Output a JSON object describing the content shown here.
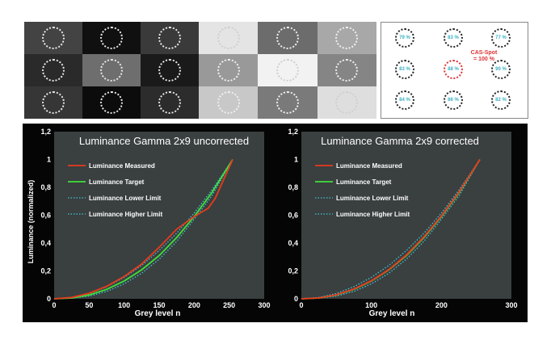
{
  "test_patterns": {
    "left_grid_grays": [
      [
        "#434343",
        "#101010",
        "#3a3a3a"
      ],
      [
        "#2a2a2a",
        "#6e6e6e",
        "#1a1a1a"
      ],
      [
        "#363636",
        "#0c0c0c",
        "#2c2c2c"
      ]
    ],
    "mid_grid_grays": [
      [
        "#e4e4e4",
        "#6c6c6c",
        "#a8a8a8"
      ],
      [
        "#999999",
        "#f2f2f2",
        "#858585"
      ],
      [
        "#c8c8c8",
        "#7a7a7a",
        "#dedede"
      ]
    ]
  },
  "uniformity": {
    "cells": [
      "79 %",
      "83 %",
      "77 %",
      "83 %",
      "88 %",
      "90 %",
      "84 %",
      "86 %",
      "82 %"
    ],
    "spot_label_line1": "CAS-Spot",
    "spot_label_line2": "= 100 %"
  },
  "colors": {
    "measured": "#e83a1e",
    "target": "#3fe03a",
    "limits": "#3ec8d8",
    "plot_bg": "#3a3f3f",
    "frame": "#050505",
    "axis_text": "#ffffff"
  },
  "chart_data": [
    {
      "type": "line",
      "title": "Luminance Gamma 2x9 uncorrected",
      "xlabel": "Grey level n",
      "ylabel": "Luminance (normalized)",
      "xlim": [
        0,
        300
      ],
      "ylim": [
        0,
        1.2
      ],
      "xticks": [
        "0",
        "50",
        "100",
        "150",
        "200",
        "250",
        "300"
      ],
      "yticks": [
        "0",
        "0,2",
        "0,4",
        "0,6",
        "0,8",
        "1",
        "1,2"
      ],
      "legend_position": "top-left",
      "series": [
        {
          "name": "Luminance Measured",
          "style": "solid",
          "color": "#e83a1e",
          "x": [
            0,
            25,
            50,
            75,
            100,
            125,
            150,
            175,
            200,
            210,
            220,
            230,
            255
          ],
          "y": [
            0,
            0.01,
            0.04,
            0.09,
            0.16,
            0.25,
            0.37,
            0.5,
            0.59,
            0.62,
            0.65,
            0.72,
            1.0
          ]
        },
        {
          "name": "Luminance Target",
          "style": "solid",
          "color": "#3fe03a",
          "gamma": 2.2,
          "x": [
            0,
            25,
            50,
            75,
            100,
            125,
            150,
            175,
            200,
            225,
            255
          ],
          "y": [
            0,
            0.006,
            0.028,
            0.068,
            0.128,
            0.208,
            0.31,
            0.44,
            0.59,
            0.76,
            1.0
          ]
        },
        {
          "name": "Luminance Lower Limit",
          "style": "dotted",
          "color": "#3ec8d8",
          "gamma": 2.4,
          "x": [
            0,
            25,
            50,
            75,
            100,
            125,
            150,
            175,
            200,
            225,
            255
          ],
          "y": [
            0,
            0.004,
            0.02,
            0.053,
            0.107,
            0.183,
            0.284,
            0.413,
            0.571,
            0.738,
            1.0
          ]
        },
        {
          "name": "Luminance Higher Limit",
          "style": "dotted",
          "color": "#3ec8d8",
          "gamma": 2.0,
          "x": [
            0,
            25,
            50,
            75,
            100,
            125,
            150,
            175,
            200,
            225,
            255
          ],
          "y": [
            0,
            0.01,
            0.038,
            0.087,
            0.154,
            0.24,
            0.346,
            0.471,
            0.615,
            0.779,
            1.0
          ]
        }
      ]
    },
    {
      "type": "line",
      "title": "Luminance Gamma 2x9 corrected",
      "xlabel": "Grey level n",
      "ylabel": "",
      "xlim": [
        0,
        300
      ],
      "ylim": [
        0,
        1.2
      ],
      "xticks": [
        "0",
        "100",
        "200",
        "300"
      ],
      "yticks": [
        "0",
        "0,2",
        "0,4",
        "0,6",
        "0,8",
        "1",
        "1,2"
      ],
      "legend_position": "top-left",
      "series": [
        {
          "name": "Luminance Measured",
          "style": "solid",
          "color": "#e83a1e",
          "x": [
            0,
            25,
            50,
            75,
            100,
            125,
            150,
            175,
            200,
            225,
            255
          ],
          "y": [
            0,
            0.006,
            0.029,
            0.07,
            0.13,
            0.21,
            0.315,
            0.445,
            0.595,
            0.765,
            1.0
          ]
        },
        {
          "name": "Luminance Target",
          "style": "solid",
          "color": "#3fe03a",
          "x": [
            0,
            25,
            50,
            75,
            100,
            125,
            150,
            175,
            200,
            225,
            255
          ],
          "y": [
            0,
            0.006,
            0.028,
            0.068,
            0.128,
            0.208,
            0.31,
            0.44,
            0.59,
            0.76,
            1.0
          ]
        },
        {
          "name": "Luminance Lower Limit",
          "style": "dotted",
          "color": "#3ec8d8",
          "x": [
            0,
            25,
            50,
            75,
            100,
            125,
            150,
            175,
            200,
            225,
            255
          ],
          "y": [
            0,
            0.004,
            0.02,
            0.053,
            0.107,
            0.183,
            0.284,
            0.413,
            0.571,
            0.738,
            1.0
          ]
        },
        {
          "name": "Luminance Higher Limit",
          "style": "dotted",
          "color": "#3ec8d8",
          "x": [
            0,
            25,
            50,
            75,
            100,
            125,
            150,
            175,
            200,
            225,
            255
          ],
          "y": [
            0,
            0.01,
            0.038,
            0.087,
            0.154,
            0.24,
            0.346,
            0.471,
            0.615,
            0.779,
            1.0
          ]
        }
      ]
    }
  ]
}
